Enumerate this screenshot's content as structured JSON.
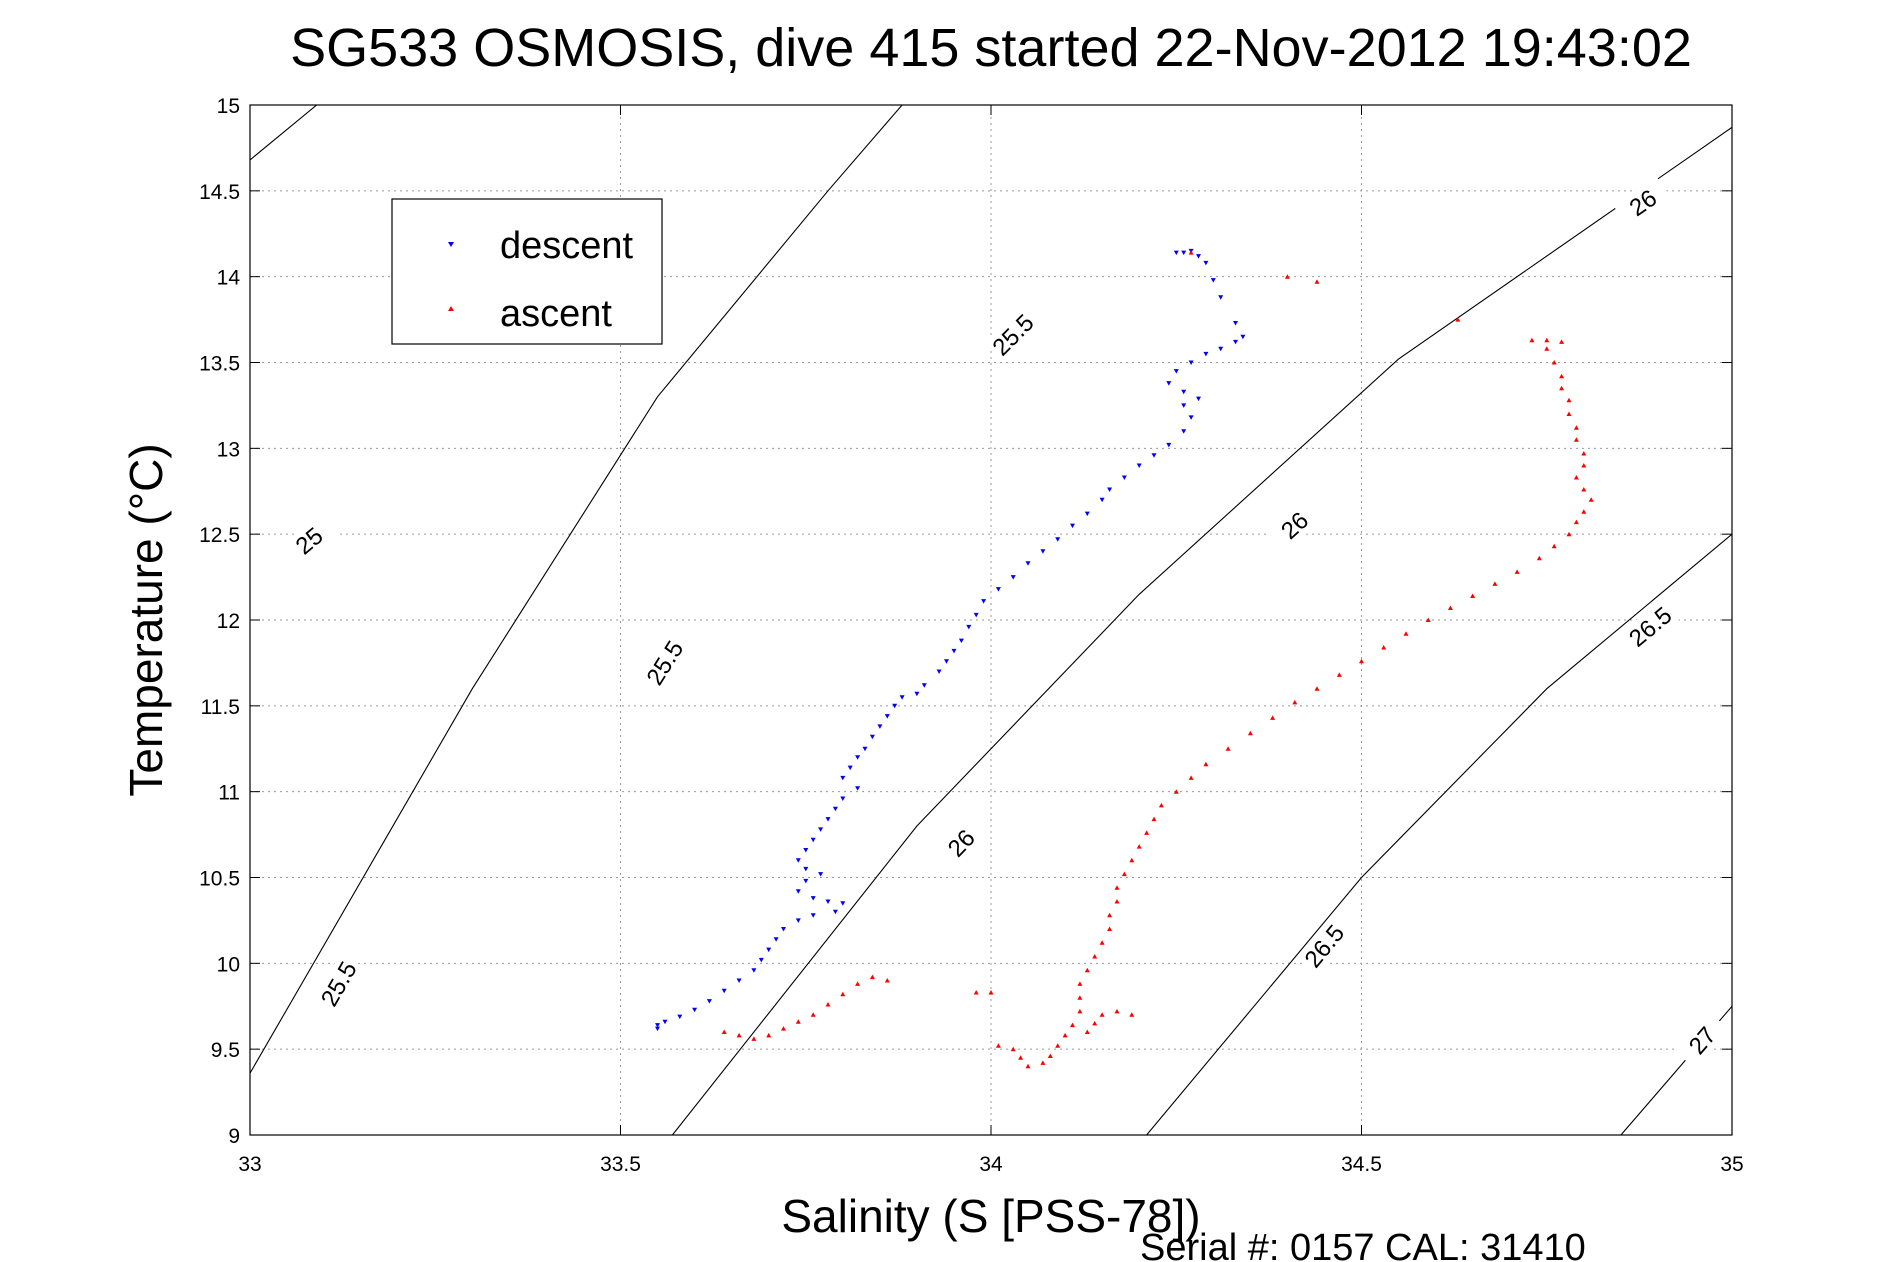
{
  "chart_data": {
    "type": "scatter",
    "title": "SG533 OSMOSIS, dive 415 started 22-Nov-2012 19:43:02",
    "xlabel": "Salinity (S [PSS-78])",
    "ylabel": "Temperature (°C)",
    "xlim": [
      33,
      35
    ],
    "ylim": [
      9,
      15
    ],
    "x_ticks": [
      "33",
      "33.5",
      "34",
      "34.5",
      "35"
    ],
    "y_ticks": [
      "9",
      "9.5",
      "10",
      "10.5",
      "11",
      "11.5",
      "12",
      "12.5",
      "13",
      "13.5",
      "14",
      "14.5",
      "15"
    ],
    "grid": true,
    "legend_position": "top-left",
    "footer": "Serial #: 0157  CAL: 31410",
    "density_contours": [
      {
        "label": "25",
        "points": [
          [
            33.0,
            14.68
          ],
          [
            33.09,
            15.0
          ]
        ],
        "labels_at": [
          [
            33.08,
            12.46
          ]
        ]
      },
      {
        "label": "25.5",
        "points": [
          [
            33.0,
            9.36
          ],
          [
            33.3,
            11.6
          ],
          [
            33.55,
            13.3
          ],
          [
            33.78,
            14.5
          ],
          [
            33.88,
            15.0
          ]
        ],
        "labels_at": [
          [
            33.12,
            9.88
          ],
          [
            33.56,
            11.75
          ],
          [
            34.03,
            13.66
          ]
        ]
      },
      {
        "label": "26",
        "points": [
          [
            33.57,
            9.0
          ],
          [
            33.9,
            10.8
          ],
          [
            34.2,
            12.15
          ],
          [
            34.55,
            13.52
          ],
          [
            34.96,
            14.75
          ],
          [
            35.0,
            14.87
          ]
        ],
        "labels_at": [
          [
            33.96,
            10.7
          ],
          [
            34.41,
            12.55
          ],
          [
            34.88,
            14.43
          ]
        ]
      },
      {
        "label": "26.5",
        "points": [
          [
            34.21,
            9.0
          ],
          [
            34.5,
            10.5
          ],
          [
            34.75,
            11.6
          ],
          [
            35.0,
            12.5
          ]
        ],
        "labels_at": [
          [
            34.45,
            10.1
          ],
          [
            34.89,
            11.96
          ]
        ]
      },
      {
        "label": "27",
        "points": [
          [
            34.85,
            9.0
          ],
          [
            35.0,
            9.75
          ]
        ],
        "labels_at": [
          [
            34.96,
            9.55
          ]
        ]
      }
    ],
    "series": [
      {
        "name": "descent",
        "color": "#0000ff",
        "marker": "triangle-down",
        "points": [
          [
            34.25,
            14.14
          ],
          [
            34.26,
            14.14
          ],
          [
            34.27,
            14.15
          ],
          [
            34.28,
            14.12
          ],
          [
            34.29,
            14.08
          ],
          [
            34.3,
            13.98
          ],
          [
            34.31,
            13.88
          ],
          [
            34.33,
            13.73
          ],
          [
            34.34,
            13.65
          ],
          [
            34.33,
            13.62
          ],
          [
            34.31,
            13.58
          ],
          [
            34.29,
            13.55
          ],
          [
            34.27,
            13.5
          ],
          [
            34.25,
            13.45
          ],
          [
            34.24,
            13.38
          ],
          [
            34.26,
            13.33
          ],
          [
            34.28,
            13.29
          ],
          [
            34.26,
            13.25
          ],
          [
            34.27,
            13.18
          ],
          [
            34.26,
            13.1
          ],
          [
            34.24,
            13.02
          ],
          [
            34.22,
            12.96
          ],
          [
            34.2,
            12.9
          ],
          [
            34.18,
            12.83
          ],
          [
            34.16,
            12.76
          ],
          [
            34.15,
            12.7
          ],
          [
            34.13,
            12.62
          ],
          [
            34.11,
            12.55
          ],
          [
            34.09,
            12.47
          ],
          [
            34.07,
            12.4
          ],
          [
            34.05,
            12.33
          ],
          [
            34.03,
            12.25
          ],
          [
            34.01,
            12.18
          ],
          [
            33.99,
            12.11
          ],
          [
            33.98,
            12.03
          ],
          [
            33.97,
            11.96
          ],
          [
            33.96,
            11.88
          ],
          [
            33.95,
            11.82
          ],
          [
            33.94,
            11.76
          ],
          [
            33.93,
            11.7
          ],
          [
            33.91,
            11.62
          ],
          [
            33.9,
            11.57
          ],
          [
            33.88,
            11.55
          ],
          [
            33.87,
            11.5
          ],
          [
            33.86,
            11.44
          ],
          [
            33.85,
            11.38
          ],
          [
            33.84,
            11.32
          ],
          [
            33.83,
            11.25
          ],
          [
            33.82,
            11.2
          ],
          [
            33.81,
            11.14
          ],
          [
            33.8,
            11.08
          ],
          [
            33.82,
            11.02
          ],
          [
            33.8,
            10.96
          ],
          [
            33.79,
            10.9
          ],
          [
            33.78,
            10.84
          ],
          [
            33.77,
            10.78
          ],
          [
            33.76,
            10.72
          ],
          [
            33.75,
            10.66
          ],
          [
            33.74,
            10.6
          ],
          [
            33.75,
            10.55
          ],
          [
            33.77,
            10.52
          ],
          [
            33.75,
            10.48
          ],
          [
            33.74,
            10.42
          ],
          [
            33.76,
            10.38
          ],
          [
            33.78,
            10.36
          ],
          [
            33.8,
            10.35
          ],
          [
            33.79,
            10.3
          ],
          [
            33.76,
            10.28
          ],
          [
            33.74,
            10.25
          ],
          [
            33.72,
            10.2
          ],
          [
            33.71,
            10.14
          ],
          [
            33.7,
            10.08
          ],
          [
            33.69,
            10.02
          ],
          [
            33.68,
            9.96
          ],
          [
            33.66,
            9.9
          ],
          [
            33.64,
            9.84
          ],
          [
            33.62,
            9.78
          ],
          [
            33.6,
            9.73
          ],
          [
            33.58,
            9.69
          ],
          [
            33.56,
            9.66
          ],
          [
            33.55,
            9.64
          ],
          [
            33.55,
            9.62
          ]
        ]
      },
      {
        "name": "ascent",
        "color": "#ff0000",
        "marker": "triangle-up",
        "points": [
          [
            34.27,
            14.14
          ],
          [
            34.4,
            14.0
          ],
          [
            34.44,
            13.97
          ],
          [
            34.63,
            13.75
          ],
          [
            34.73,
            13.63
          ],
          [
            34.75,
            13.63
          ],
          [
            34.77,
            13.62
          ],
          [
            34.75,
            13.58
          ],
          [
            34.76,
            13.5
          ],
          [
            34.77,
            13.42
          ],
          [
            34.77,
            13.35
          ],
          [
            34.78,
            13.28
          ],
          [
            34.78,
            13.2
          ],
          [
            34.79,
            13.12
          ],
          [
            34.79,
            13.05
          ],
          [
            34.8,
            12.97
          ],
          [
            34.8,
            12.9
          ],
          [
            34.79,
            12.83
          ],
          [
            34.8,
            12.76
          ],
          [
            34.81,
            12.7
          ],
          [
            34.8,
            12.63
          ],
          [
            34.79,
            12.57
          ],
          [
            34.78,
            12.5
          ],
          [
            34.76,
            12.43
          ],
          [
            34.74,
            12.36
          ],
          [
            34.71,
            12.28
          ],
          [
            34.68,
            12.21
          ],
          [
            34.65,
            12.14
          ],
          [
            34.62,
            12.07
          ],
          [
            34.59,
            12.0
          ],
          [
            34.56,
            11.92
          ],
          [
            34.53,
            11.84
          ],
          [
            34.5,
            11.76
          ],
          [
            34.47,
            11.68
          ],
          [
            34.44,
            11.6
          ],
          [
            34.41,
            11.52
          ],
          [
            34.38,
            11.43
          ],
          [
            34.35,
            11.34
          ],
          [
            34.32,
            11.25
          ],
          [
            34.29,
            11.16
          ],
          [
            34.27,
            11.08
          ],
          [
            34.25,
            11.0
          ],
          [
            34.23,
            10.92
          ],
          [
            34.22,
            10.84
          ],
          [
            34.21,
            10.76
          ],
          [
            34.2,
            10.68
          ],
          [
            34.19,
            10.6
          ],
          [
            34.18,
            10.52
          ],
          [
            34.17,
            10.44
          ],
          [
            34.17,
            10.36
          ],
          [
            34.16,
            10.28
          ],
          [
            34.16,
            10.2
          ],
          [
            34.15,
            10.12
          ],
          [
            34.14,
            10.04
          ],
          [
            34.13,
            9.96
          ],
          [
            34.12,
            9.88
          ],
          [
            34.12,
            9.8
          ],
          [
            34.12,
            9.72
          ],
          [
            34.11,
            9.64
          ],
          [
            34.1,
            9.58
          ],
          [
            34.09,
            9.52
          ],
          [
            34.08,
            9.46
          ],
          [
            34.07,
            9.42
          ],
          [
            34.05,
            9.4
          ],
          [
            34.04,
            9.45
          ],
          [
            34.03,
            9.5
          ],
          [
            34.01,
            9.52
          ],
          [
            34.13,
            9.6
          ],
          [
            34.14,
            9.65
          ],
          [
            34.15,
            9.7
          ],
          [
            34.17,
            9.72
          ],
          [
            34.19,
            9.7
          ],
          [
            33.64,
            9.6
          ],
          [
            33.66,
            9.58
          ],
          [
            33.68,
            9.56
          ],
          [
            33.7,
            9.58
          ],
          [
            33.72,
            9.62
          ],
          [
            33.74,
            9.66
          ],
          [
            33.76,
            9.7
          ],
          [
            33.78,
            9.76
          ],
          [
            33.8,
            9.82
          ],
          [
            33.82,
            9.88
          ],
          [
            33.84,
            9.92
          ],
          [
            33.86,
            9.9
          ],
          [
            33.98,
            9.83
          ],
          [
            34.0,
            9.83
          ]
        ]
      }
    ]
  }
}
